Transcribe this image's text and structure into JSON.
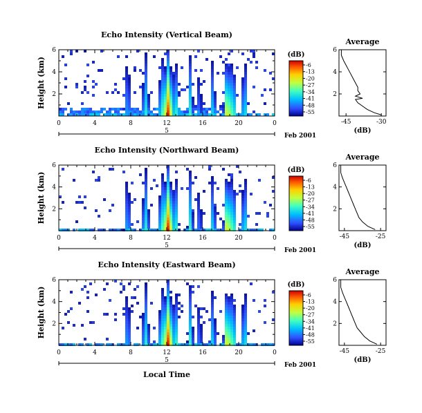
{
  "chart_data": [
    {
      "type": "heatmap",
      "title": "Echo Intensity (Vertical Beam)",
      "ylabel": "Height (km)",
      "x_ticks": [
        "0",
        "4",
        "8",
        "12",
        "16",
        "20",
        "0"
      ],
      "y_ticks": [
        "2",
        "4",
        "6"
      ],
      "xlim": [
        0,
        24
      ],
      "ylim": [
        0,
        6
      ],
      "date_tick": "5",
      "date_label": "Feb 2001",
      "profile": {
        "title": "Average",
        "xlabel": "(dB)",
        "x_ticks": [
          "-45",
          "-30"
        ],
        "y_ticks": [
          "2",
          "4",
          "6"
        ],
        "xlim": [
          -48,
          -28
        ],
        "values": [
          [
            -30,
            0.1
          ],
          [
            -33,
            0.3
          ],
          [
            -36,
            0.6
          ],
          [
            -38,
            0.9
          ],
          [
            -40,
            1.2
          ],
          [
            -41,
            1.5
          ],
          [
            -38,
            1.6
          ],
          [
            -41,
            1.8
          ],
          [
            -39,
            2.0
          ],
          [
            -40,
            2.3
          ],
          [
            -40,
            2.6
          ],
          [
            -41,
            3.0
          ],
          [
            -42,
            3.4
          ],
          [
            -43,
            3.8
          ],
          [
            -44,
            4.2
          ],
          [
            -45,
            4.6
          ],
          [
            -46,
            5.0
          ],
          [
            -47,
            5.5
          ],
          [
            -47,
            6.0
          ]
        ]
      },
      "colorbar": {
        "unit": "(dB)",
        "labels": [
          "-6",
          "-13",
          "-20",
          "-27",
          "-34",
          "-41",
          "-48",
          "-55"
        ]
      }
    },
    {
      "type": "heatmap",
      "title": "Echo Intensity (Northward Beam)",
      "ylabel": "Height (km)",
      "x_ticks": [
        "0",
        "4",
        "8",
        "12",
        "16",
        "20",
        "0"
      ],
      "y_ticks": [
        "2",
        "4",
        "6"
      ],
      "xlim": [
        0,
        24
      ],
      "ylim": [
        0,
        6
      ],
      "date_tick": "5",
      "date_label": "Feb 2001",
      "profile": {
        "title": "Average",
        "xlabel": "(dB)",
        "x_ticks": [
          "-45",
          "-25"
        ],
        "y_ticks": [
          "2",
          "4",
          "6"
        ],
        "xlim": [
          -48,
          -22
        ],
        "values": [
          [
            -28,
            0.1
          ],
          [
            -32,
            0.4
          ],
          [
            -35,
            0.8
          ],
          [
            -37,
            1.2
          ],
          [
            -38,
            1.6
          ],
          [
            -39,
            2.0
          ],
          [
            -40,
            2.4
          ],
          [
            -41,
            2.8
          ],
          [
            -42,
            3.2
          ],
          [
            -43,
            3.6
          ],
          [
            -44,
            4.0
          ],
          [
            -45,
            4.4
          ],
          [
            -46,
            4.8
          ],
          [
            -47,
            5.3
          ],
          [
            -47,
            6.0
          ]
        ]
      },
      "colorbar": {
        "unit": "(dB)",
        "labels": [
          "-6",
          "-13",
          "-20",
          "-27",
          "-34",
          "-41",
          "-48",
          "-55"
        ]
      }
    },
    {
      "type": "heatmap",
      "title": "Echo Intensity (Eastward Beam)",
      "ylabel": "Height (km)",
      "xlabel": "Local Time",
      "x_ticks": [
        "0",
        "4",
        "8",
        "12",
        "16",
        "20",
        "0"
      ],
      "y_ticks": [
        "2",
        "4",
        "6"
      ],
      "xlim": [
        0,
        24
      ],
      "ylim": [
        0,
        6
      ],
      "date_tick": "5",
      "date_label": "Feb 2001",
      "profile": {
        "title": "Average",
        "xlabel": "(dB)",
        "x_ticks": [
          "-45",
          "-25"
        ],
        "y_ticks": [
          "2",
          "4",
          "6"
        ],
        "xlim": [
          -48,
          -22
        ],
        "values": [
          [
            -27,
            0.1
          ],
          [
            -31,
            0.4
          ],
          [
            -34,
            0.8
          ],
          [
            -36,
            1.2
          ],
          [
            -38,
            1.6
          ],
          [
            -39,
            2.0
          ],
          [
            -40,
            2.4
          ],
          [
            -41,
            2.8
          ],
          [
            -42,
            3.2
          ],
          [
            -43,
            3.6
          ],
          [
            -44,
            4.0
          ],
          [
            -45,
            4.4
          ],
          [
            -46,
            4.8
          ],
          [
            -47,
            5.3
          ],
          [
            -47,
            6.0
          ]
        ]
      },
      "colorbar": {
        "unit": "(dB)",
        "labels": [
          "-6",
          "-13",
          "-20",
          "-27",
          "-34",
          "-41",
          "-48",
          "-55"
        ]
      }
    }
  ]
}
